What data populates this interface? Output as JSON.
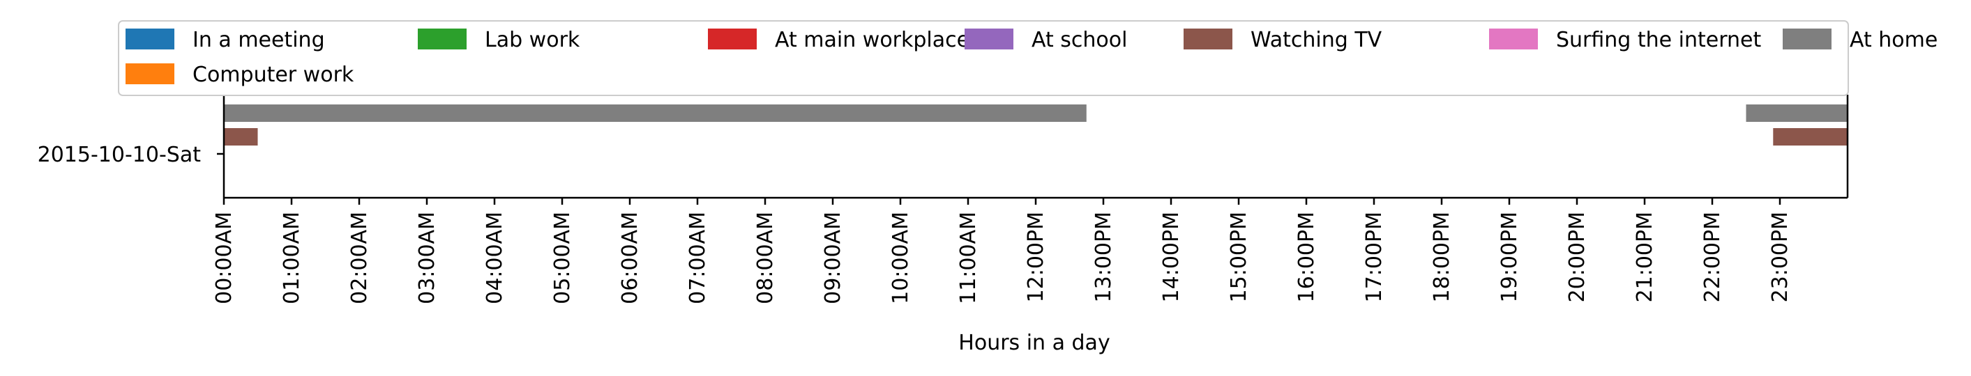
{
  "chart_data": {
    "type": "bar",
    "orientation": "horizontal",
    "xlabel": "Hours in a day",
    "ylabel": "",
    "xlim": [
      0,
      24
    ],
    "x_ticks": [
      {
        "value": 0,
        "label": "00:00AM"
      },
      {
        "value": 1,
        "label": "01:00AM"
      },
      {
        "value": 2,
        "label": "02:00AM"
      },
      {
        "value": 3,
        "label": "03:00AM"
      },
      {
        "value": 4,
        "label": "04:00AM"
      },
      {
        "value": 5,
        "label": "05:00AM"
      },
      {
        "value": 6,
        "label": "06:00AM"
      },
      {
        "value": 7,
        "label": "07:00AM"
      },
      {
        "value": 8,
        "label": "08:00AM"
      },
      {
        "value": 9,
        "label": "09:00AM"
      },
      {
        "value": 10,
        "label": "10:00AM"
      },
      {
        "value": 11,
        "label": "11:00AM"
      },
      {
        "value": 12,
        "label": "12:00PM"
      },
      {
        "value": 13,
        "label": "13:00PM"
      },
      {
        "value": 14,
        "label": "14:00PM"
      },
      {
        "value": 15,
        "label": "15:00PM"
      },
      {
        "value": 16,
        "label": "16:00PM"
      },
      {
        "value": 17,
        "label": "17:00PM"
      },
      {
        "value": 18,
        "label": "18:00PM"
      },
      {
        "value": 19,
        "label": "19:00PM"
      },
      {
        "value": 20,
        "label": "20:00PM"
      },
      {
        "value": 21,
        "label": "21:00PM"
      },
      {
        "value": 22,
        "label": "22:00PM"
      },
      {
        "value": 23,
        "label": "23:00PM"
      }
    ],
    "categories": [
      "2015-10-10-Sat"
    ],
    "grid": false,
    "legend": {
      "placement": "top",
      "columns": 7,
      "entries": [
        {
          "name": "In a meeting",
          "color": "#1f77b4"
        },
        {
          "name": "Lab work",
          "color": "#2ca02c"
        },
        {
          "name": "At main workplace",
          "color": "#d62728"
        },
        {
          "name": "At school",
          "color": "#9467bd"
        },
        {
          "name": "Watching TV",
          "color": "#8c564b"
        },
        {
          "name": "Surfing the internet",
          "color": "#e377c2"
        },
        {
          "name": "At home",
          "color": "#7f7f7f"
        },
        {
          "name": "Computer work",
          "color": "#ff7f0e"
        }
      ]
    },
    "series": [
      {
        "name": "At home",
        "color": "#7f7f7f",
        "lane": 0,
        "intervals": [
          [
            0,
            12.75
          ],
          [
            22.5,
            24
          ]
        ]
      },
      {
        "name": "Watching TV",
        "color": "#8c564b",
        "lane": 1,
        "intervals": [
          [
            0,
            0.5
          ],
          [
            22.9,
            24
          ]
        ]
      }
    ]
  }
}
